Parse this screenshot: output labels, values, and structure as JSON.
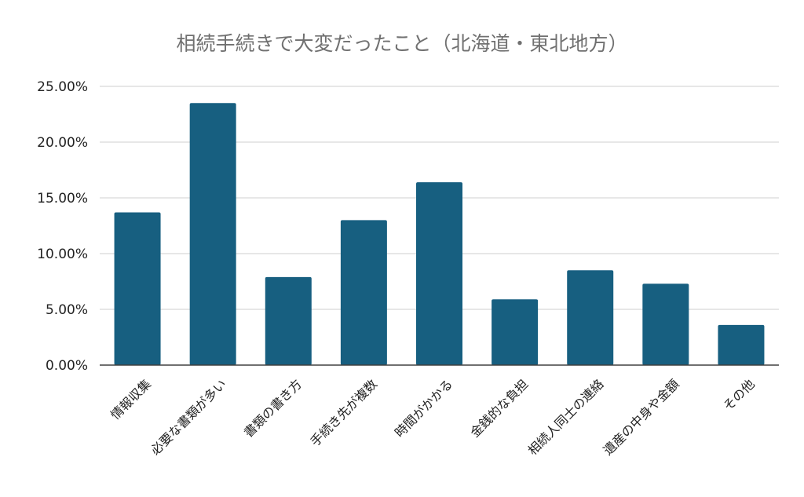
{
  "chart_data": {
    "type": "bar",
    "title": "相続手続きで大変だったこと（北海道・東北地方）",
    "xlabel": "",
    "ylabel": "",
    "categories": [
      "情報収集",
      "必要な書類が多い",
      "書類の書き方",
      "手続き先が複数",
      "時間がかかる",
      "金銭的な負担",
      "相続人同士の連絡",
      "遺産の中身や金額",
      "その他"
    ],
    "values": [
      13.7,
      23.5,
      7.9,
      13.0,
      16.4,
      5.9,
      8.5,
      7.3,
      3.6
    ],
    "ylim": [
      0,
      25
    ],
    "yticks": [
      "0.00%",
      "5.00%",
      "10.00%",
      "15.00%",
      "20.00%",
      "25.00%"
    ],
    "grid": true,
    "legend": "none",
    "bar_color": "#175f80"
  }
}
